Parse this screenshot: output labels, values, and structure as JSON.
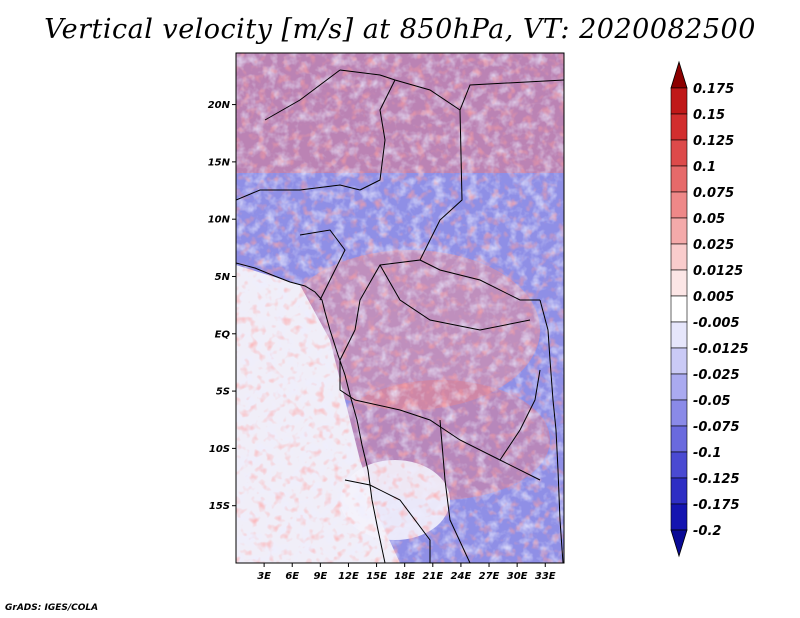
{
  "title": "Vertical velocity [m/s] at 850hPa, VT: 2020082500",
  "credit": "GrADS: IGES/COLA",
  "map": {
    "lon_range": [
      0,
      35
    ],
    "lat_range": [
      -20,
      24.5
    ],
    "lat_ticks": [
      {
        "value": 20,
        "label": "20N"
      },
      {
        "value": 15,
        "label": "15N"
      },
      {
        "value": 10,
        "label": "10N"
      },
      {
        "value": 5,
        "label": "5N"
      },
      {
        "value": 0,
        "label": "EQ"
      },
      {
        "value": -5,
        "label": "5S"
      },
      {
        "value": -10,
        "label": "10S"
      },
      {
        "value": -15,
        "label": "15S"
      }
    ],
    "lon_ticks": [
      {
        "value": 3,
        "label": "3E"
      },
      {
        "value": 6,
        "label": "6E"
      },
      {
        "value": 9,
        "label": "9E"
      },
      {
        "value": 12,
        "label": "12E"
      },
      {
        "value": 15,
        "label": "15E"
      },
      {
        "value": 18,
        "label": "18E"
      },
      {
        "value": 21,
        "label": "21E"
      },
      {
        "value": 24,
        "label": "24E"
      },
      {
        "value": 27,
        "label": "27E"
      },
      {
        "value": 30,
        "label": "30E"
      },
      {
        "value": 33,
        "label": "33E"
      }
    ]
  },
  "colorbar": {
    "levels": [
      {
        "label": "0.175",
        "color": "#a80000"
      },
      {
        "label": "0.15",
        "color": "#c01818"
      },
      {
        "label": "0.125",
        "color": "#d22e2e"
      },
      {
        "label": "0.1",
        "color": "#dd4a4a"
      },
      {
        "label": "0.075",
        "color": "#e66a6a"
      },
      {
        "label": "0.05",
        "color": "#ee8888"
      },
      {
        "label": "0.025",
        "color": "#f4aaaa"
      },
      {
        "label": "0.0125",
        "color": "#f9cccc"
      },
      {
        "label": "0.005",
        "color": "#fce6e6"
      },
      {
        "label": "-0.005",
        "color": "#ffffff"
      },
      {
        "label": "-0.0125",
        "color": "#e6e6fb"
      },
      {
        "label": "-0.025",
        "color": "#cacaf6"
      },
      {
        "label": "-0.05",
        "color": "#aaaaf0"
      },
      {
        "label": "-0.075",
        "color": "#8a8ae8"
      },
      {
        "label": "-0.1",
        "color": "#6a6ade"
      },
      {
        "label": "-0.125",
        "color": "#4a4ad2"
      },
      {
        "label": "-0.175",
        "color": "#2e2ec4"
      },
      {
        "label": "-0.2",
        "color": "#1414b0"
      }
    ],
    "top_arrow_color": "#8c0000",
    "bottom_arrow_color": "#0a0a96"
  }
}
